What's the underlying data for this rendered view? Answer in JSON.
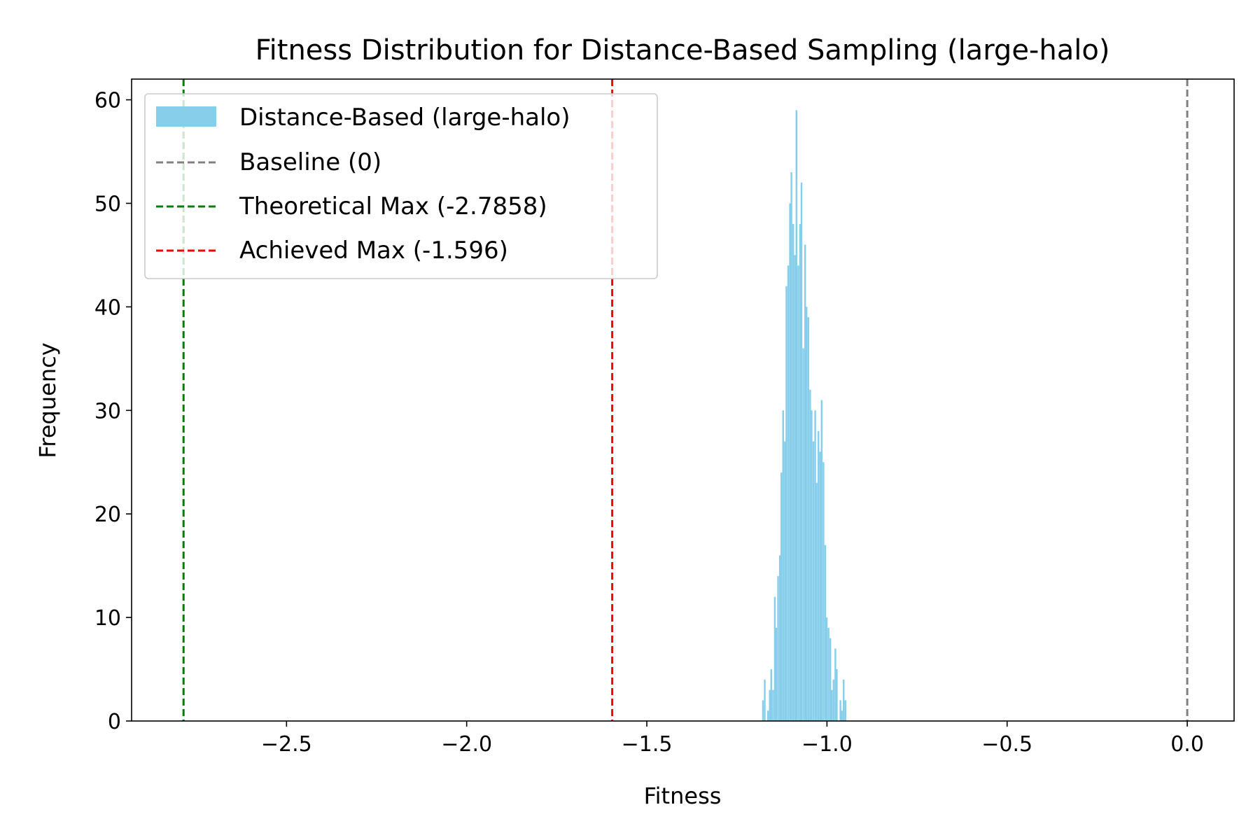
{
  "chart_data": {
    "type": "bar",
    "title": "Fitness Distribution for Distance-Based Sampling (large-halo)",
    "xlabel": "Fitness",
    "ylabel": "Frequency",
    "xlim": [
      -2.93,
      0.13
    ],
    "ylim": [
      0,
      62
    ],
    "xticks": [
      -2.5,
      -2.0,
      -1.5,
      -1.0,
      -0.5,
      0.0
    ],
    "xtick_labels": [
      "−2.5",
      "−2.0",
      "−1.5",
      "−1.0",
      "−0.5",
      "0.0"
    ],
    "yticks": [
      0,
      10,
      20,
      30,
      40,
      50,
      60
    ],
    "ytick_labels": [
      "0",
      "10",
      "20",
      "30",
      "40",
      "50",
      "60"
    ],
    "grid": false,
    "legend_position": "upper-left",
    "histogram": {
      "label": "Distance-Based (large-halo)",
      "color": "#87CEEB",
      "bin_width": 0.0047,
      "bin_starts": [
        -1.18,
        -1.175,
        -1.171,
        -1.166,
        -1.161,
        -1.157,
        -1.152,
        -1.147,
        -1.143,
        -1.138,
        -1.133,
        -1.129,
        -1.124,
        -1.119,
        -1.115,
        -1.11,
        -1.105,
        -1.101,
        -1.096,
        -1.091,
        -1.087,
        -1.082,
        -1.077,
        -1.073,
        -1.068,
        -1.063,
        -1.059,
        -1.054,
        -1.049,
        -1.045,
        -1.04,
        -1.035,
        -1.031,
        -1.026,
        -1.021,
        -1.017,
        -1.012,
        -1.007,
        -1.003,
        -0.998,
        -0.993,
        -0.989,
        -0.984,
        -0.979,
        -0.975,
        -0.97,
        -0.965,
        -0.961,
        -0.956,
        -0.951
      ],
      "counts": [
        2,
        4,
        0,
        1,
        3,
        5,
        3,
        12,
        9,
        14,
        16,
        24,
        30,
        27,
        42,
        44,
        50,
        53,
        48,
        45,
        59,
        44,
        48,
        52,
        36,
        46,
        40,
        39,
        32,
        30,
        27,
        30,
        23,
        28,
        26,
        31,
        25,
        17,
        10,
        9,
        8,
        3,
        4,
        7,
        5,
        0,
        2,
        1,
        4,
        2
      ]
    },
    "reference_lines": [
      {
        "label": "Baseline (0)",
        "x": 0,
        "color": "#808080"
      },
      {
        "label": "Theoretical Max (-2.7858)",
        "x": -2.7858,
        "color": "#008000"
      },
      {
        "label": "Achieved Max (-1.596)",
        "x": -1.596,
        "color": "#FF0000"
      }
    ]
  }
}
